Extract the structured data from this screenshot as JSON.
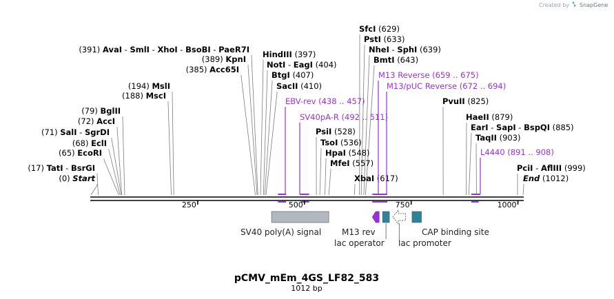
{
  "brand": {
    "created_by": "Created by",
    "product": "SnapGene"
  },
  "map": {
    "name": "pCMV_mEm_4GS_LF82_583",
    "length_label": "1012 bp",
    "length": 1012,
    "ticks": [
      "250",
      "500",
      "750",
      "1000"
    ],
    "tick_values": [
      250,
      500,
      750,
      1000
    ]
  },
  "sites": [
    {
      "id": "start",
      "text": [
        {
          "t": "(0)",
          "b": false
        },
        {
          "t": "  "
        },
        {
          "t": "Start",
          "b": true,
          "i": true
        }
      ],
      "pos": 0
    },
    {
      "id": "tati-bsrgi",
      "text": [
        {
          "t": "(17)",
          "b": false
        },
        {
          "t": "  "
        },
        {
          "t": "TatI",
          "b": true
        },
        {
          "t": "  -  "
        },
        {
          "t": "BsrGI",
          "b": true
        }
      ],
      "pos": 17
    },
    {
      "id": "ecori",
      "text": [
        {
          "t": "(65)",
          "b": false
        },
        {
          "t": "  "
        },
        {
          "t": "EcoRI",
          "b": true
        }
      ],
      "pos": 65
    },
    {
      "id": "ecli",
      "text": [
        {
          "t": "(68)",
          "b": false
        },
        {
          "t": "  "
        },
        {
          "t": "EclI",
          "b": true
        }
      ],
      "pos": 68
    },
    {
      "id": "sali-sgrdi",
      "text": [
        {
          "t": "(71)",
          "b": false
        },
        {
          "t": "  "
        },
        {
          "t": "SalI",
          "b": true
        },
        {
          "t": "  -  "
        },
        {
          "t": "SgrDI",
          "b": true
        }
      ],
      "pos": 71
    },
    {
      "id": "acci",
      "text": [
        {
          "t": "(72)",
          "b": false
        },
        {
          "t": "  "
        },
        {
          "t": "AccI",
          "b": true
        }
      ],
      "pos": 72
    },
    {
      "id": "bglii",
      "text": [
        {
          "t": "(79)",
          "b": false
        },
        {
          "t": "  "
        },
        {
          "t": "BglII",
          "b": true
        }
      ],
      "pos": 79
    },
    {
      "id": "msci",
      "text": [
        {
          "t": "(188)",
          "b": false
        },
        {
          "t": "  "
        },
        {
          "t": "MscI",
          "b": true
        }
      ],
      "pos": 188
    },
    {
      "id": "msli",
      "text": [
        {
          "t": "(194)",
          "b": false
        },
        {
          "t": "  "
        },
        {
          "t": "MslI",
          "b": true
        }
      ],
      "pos": 194
    },
    {
      "id": "acc65i",
      "text": [
        {
          "t": "(385)",
          "b": false
        },
        {
          "t": "  "
        },
        {
          "t": "Acc65I",
          "b": true
        }
      ],
      "pos": 385
    },
    {
      "id": "kpni",
      "text": [
        {
          "t": "(389)",
          "b": false
        },
        {
          "t": "  "
        },
        {
          "t": "KpnI",
          "b": true
        }
      ],
      "pos": 389
    },
    {
      "id": "avai-group",
      "text": [
        {
          "t": "(391)",
          "b": false
        },
        {
          "t": "  "
        },
        {
          "t": "AvaI",
          "b": true
        },
        {
          "t": "  -  "
        },
        {
          "t": "SmlI",
          "b": true
        },
        {
          "t": "  -  "
        },
        {
          "t": "XhoI",
          "b": true
        },
        {
          "t": "  -  "
        },
        {
          "t": "BsoBI",
          "b": true
        },
        {
          "t": "  -  "
        },
        {
          "t": "PaeR7I",
          "b": true
        }
      ],
      "pos": 391
    },
    {
      "id": "hindiii",
      "text": [
        {
          "t": "HindIII",
          "b": true
        },
        {
          "t": "  "
        },
        {
          "t": "(397)",
          "b": false
        }
      ],
      "pos": 397
    },
    {
      "id": "noti-eagi",
      "text": [
        {
          "t": "NotI",
          "b": true
        },
        {
          "t": "  -  "
        },
        {
          "t": "EagI",
          "b": true
        },
        {
          "t": "  "
        },
        {
          "t": "(404)",
          "b": false
        }
      ],
      "pos": 404
    },
    {
      "id": "btgi",
      "text": [
        {
          "t": "BtgI",
          "b": true
        },
        {
          "t": "  "
        },
        {
          "t": "(407)",
          "b": false
        }
      ],
      "pos": 407
    },
    {
      "id": "sacii",
      "text": [
        {
          "t": "SacII",
          "b": true
        },
        {
          "t": "  "
        },
        {
          "t": "(410)",
          "b": false
        }
      ],
      "pos": 410
    },
    {
      "id": "psii",
      "text": [
        {
          "t": "PsiI",
          "b": true
        },
        {
          "t": "  "
        },
        {
          "t": "(528)",
          "b": false
        }
      ],
      "pos": 528
    },
    {
      "id": "tsoi",
      "text": [
        {
          "t": "TsoI",
          "b": true
        },
        {
          "t": "  "
        },
        {
          "t": "(536)",
          "b": false
        }
      ],
      "pos": 536
    },
    {
      "id": "hpai",
      "text": [
        {
          "t": "HpaI",
          "b": true
        },
        {
          "t": "  "
        },
        {
          "t": "(548)",
          "b": false
        }
      ],
      "pos": 548
    },
    {
      "id": "mfei",
      "text": [
        {
          "t": "MfeI",
          "b": true
        },
        {
          "t": "  "
        },
        {
          "t": "(557)",
          "b": false
        }
      ],
      "pos": 557
    },
    {
      "id": "xbai",
      "text": [
        {
          "t": "XbaI",
          "b": true
        },
        {
          "t": "  "
        },
        {
          "t": "(617)",
          "b": false
        }
      ],
      "pos": 617
    },
    {
      "id": "sfci",
      "text": [
        {
          "t": "SfcI",
          "b": true
        },
        {
          "t": "  "
        },
        {
          "t": "(629)",
          "b": false
        }
      ],
      "pos": 629
    },
    {
      "id": "psti",
      "text": [
        {
          "t": "PstI",
          "b": true
        },
        {
          "t": "  "
        },
        {
          "t": "(633)",
          "b": false
        }
      ],
      "pos": 633
    },
    {
      "id": "nhei-sphi",
      "text": [
        {
          "t": "NheI",
          "b": true
        },
        {
          "t": "  -  "
        },
        {
          "t": "SphI",
          "b": true
        },
        {
          "t": "  "
        },
        {
          "t": "(639)",
          "b": false
        }
      ],
      "pos": 639
    },
    {
      "id": "bmti",
      "text": [
        {
          "t": "BmtI",
          "b": true
        },
        {
          "t": "  "
        },
        {
          "t": "(643)",
          "b": false
        }
      ],
      "pos": 643
    },
    {
      "id": "pvuii",
      "text": [
        {
          "t": "PvuII",
          "b": true
        },
        {
          "t": "  "
        },
        {
          "t": "(825)",
          "b": false
        }
      ],
      "pos": 825
    },
    {
      "id": "haeii",
      "text": [
        {
          "t": "HaeII",
          "b": true
        },
        {
          "t": "  "
        },
        {
          "t": "(879)",
          "b": false
        }
      ],
      "pos": 879
    },
    {
      "id": "eari-group",
      "text": [
        {
          "t": "EarI",
          "b": true
        },
        {
          "t": "  -  "
        },
        {
          "t": "SapI",
          "b": true
        },
        {
          "t": "  -  "
        },
        {
          "t": "BspQI",
          "b": true
        },
        {
          "t": "  "
        },
        {
          "t": "(885)",
          "b": false
        }
      ],
      "pos": 885
    },
    {
      "id": "taqii",
      "text": [
        {
          "t": "TaqII",
          "b": true
        },
        {
          "t": "  "
        },
        {
          "t": "(903)",
          "b": false
        }
      ],
      "pos": 903
    },
    {
      "id": "pcii-aflii",
      "text": [
        {
          "t": "PciI",
          "b": true
        },
        {
          "t": "  -  "
        },
        {
          "t": "AflIII",
          "b": true
        },
        {
          "t": "  "
        },
        {
          "t": "(999)",
          "b": false
        }
      ],
      "pos": 999
    },
    {
      "id": "end",
      "text": [
        {
          "t": "End",
          "b": true,
          "i": true
        },
        {
          "t": "  "
        },
        {
          "t": "(1012)",
          "b": false
        }
      ],
      "pos": 1012
    }
  ],
  "primers": [
    {
      "id": "ebv-rev",
      "label": "EBV-rev",
      "range": "(438 .. 457)",
      "start": 438,
      "end": 457,
      "strand": "reverse"
    },
    {
      "id": "sv40pa-r",
      "label": "SV40pA-R",
      "range": "(492 .. 511)",
      "start": 492,
      "end": 511,
      "strand": "reverse"
    },
    {
      "id": "m13-reverse",
      "label": "M13 Reverse",
      "range": "(659 .. 675)",
      "start": 659,
      "end": 675,
      "strand": "reverse"
    },
    {
      "id": "m13-puc-reverse",
      "label": "M13/pUC Reverse",
      "range": "(672 .. 694)",
      "start": 672,
      "end": 694,
      "strand": "reverse"
    },
    {
      "id": "l4440",
      "label": "L4440",
      "range": "(891 .. 908)",
      "start": 891,
      "end": 908,
      "strand": "forward"
    }
  ],
  "features": [
    {
      "id": "sv40-polya",
      "label": "SV40 poly(A) signal",
      "start": 423,
      "end": 557,
      "kind": "box",
      "color": "#b2b8bf"
    },
    {
      "id": "m13-rev",
      "label": "M13 rev",
      "start": 659,
      "end": 675,
      "kind": "arrow-left",
      "color": "#9b30d9"
    },
    {
      "id": "lac-operator",
      "label": "lac operator",
      "start": 683,
      "end": 699,
      "kind": "box",
      "color": "#2e8299"
    },
    {
      "id": "lac-promoter",
      "label": "lac promoter",
      "start": 707,
      "end": 737,
      "kind": "arrow-left-outline",
      "color": "#ffffff"
    },
    {
      "id": "cap-binding-site",
      "label": "CAP binding site",
      "start": 752,
      "end": 774,
      "kind": "box",
      "color": "#2e8299"
    }
  ],
  "colors": {
    "primer": "#9b30d9",
    "feature_teal": "#2e8299",
    "feature_grey": "#b2b8bf",
    "backbone": "#000000"
  }
}
